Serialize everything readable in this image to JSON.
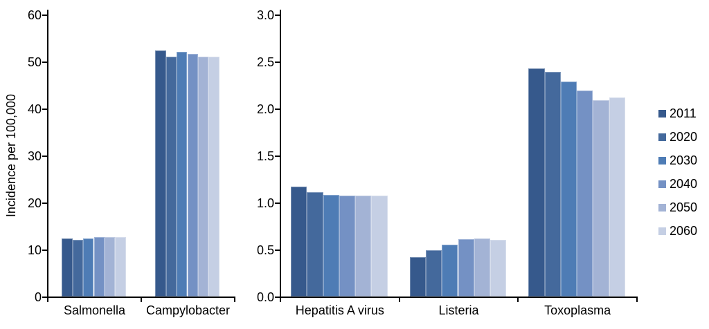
{
  "figure": {
    "background": "#ffffff",
    "axis_color": "#000000"
  },
  "legend": {
    "position": "right",
    "items": [
      {
        "label": "2011",
        "color": "#36598C"
      },
      {
        "label": "2020",
        "color": "#44699C"
      },
      {
        "label": "2030",
        "color": "#4E7CB5"
      },
      {
        "label": "2040",
        "color": "#7491C4"
      },
      {
        "label": "2050",
        "color": "#A3B3D5"
      },
      {
        "label": "2060",
        "color": "#C5CFE4"
      }
    ]
  },
  "chart_data": [
    {
      "type": "bar",
      "title": "",
      "xlabel": "",
      "ylabel": "Incidence per 100,000",
      "ylim": [
        0,
        60
      ],
      "grid": false,
      "yticks": [
        0,
        10,
        20,
        30,
        40,
        50,
        60
      ],
      "ytick_labels": [
        "0",
        "10",
        "20",
        "30",
        "40",
        "50",
        "60"
      ],
      "categories": [
        "Salmonella",
        "Campylobacter"
      ],
      "series": [
        {
          "name": "2011",
          "color": "#36598C",
          "values": [
            12.4,
            52.4
          ]
        },
        {
          "name": "2020",
          "color": "#44699C",
          "values": [
            12.1,
            51.0
          ]
        },
        {
          "name": "2030",
          "color": "#4E7CB5",
          "values": [
            12.3,
            52.1
          ]
        },
        {
          "name": "2040",
          "color": "#7491C4",
          "values": [
            12.6,
            51.6
          ]
        },
        {
          "name": "2050",
          "color": "#A3B3D5",
          "values": [
            12.6,
            51.1
          ]
        },
        {
          "name": "2060",
          "color": "#C5CFE4",
          "values": [
            12.6,
            51.1
          ]
        }
      ]
    },
    {
      "type": "bar",
      "title": "",
      "xlabel": "",
      "ylabel": "",
      "ylim": [
        0,
        3.0
      ],
      "grid": false,
      "yticks": [
        0,
        0.5,
        1.0,
        1.5,
        2.0,
        2.5,
        3.0
      ],
      "ytick_labels": [
        "0.0",
        "0.5",
        "1.0",
        "1.5",
        "2.0",
        "2.5",
        "3.0"
      ],
      "categories": [
        "Hepatitis A virus",
        "Listeria",
        "Toxoplasma"
      ],
      "series": [
        {
          "name": "2011",
          "color": "#36598C",
          "values": [
            1.17,
            0.42,
            2.43
          ]
        },
        {
          "name": "2020",
          "color": "#44699C",
          "values": [
            1.11,
            0.49,
            2.39
          ]
        },
        {
          "name": "2030",
          "color": "#4E7CB5",
          "values": [
            1.08,
            0.55,
            2.29
          ]
        },
        {
          "name": "2040",
          "color": "#7491C4",
          "values": [
            1.07,
            0.61,
            2.19
          ]
        },
        {
          "name": "2050",
          "color": "#A3B3D5",
          "values": [
            1.07,
            0.62,
            2.09
          ]
        },
        {
          "name": "2060",
          "color": "#C5CFE4",
          "values": [
            1.07,
            0.6,
            2.12
          ]
        }
      ]
    }
  ]
}
